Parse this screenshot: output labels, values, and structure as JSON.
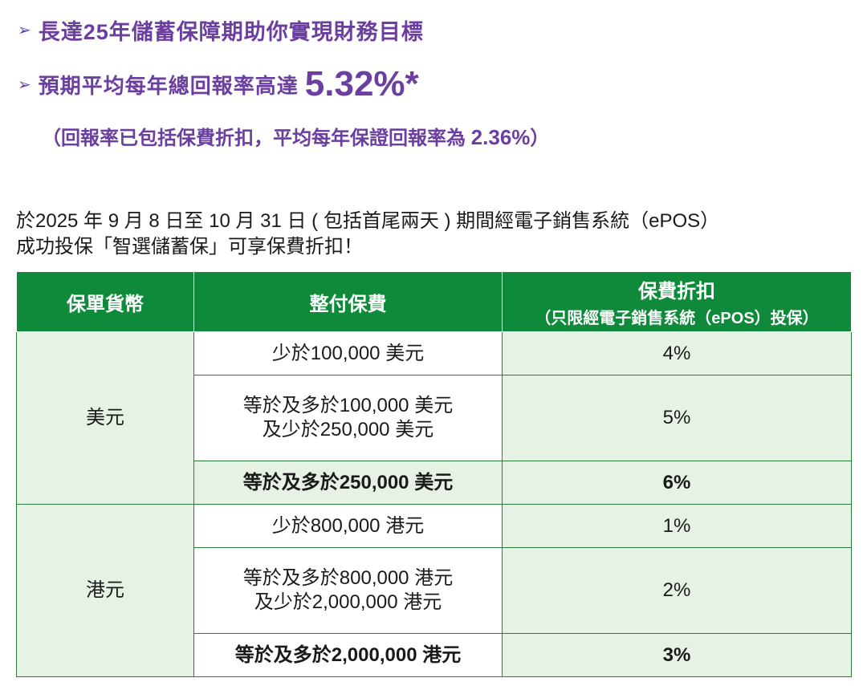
{
  "bullets": {
    "arrow": "➢",
    "line1": "長達25年儲蓄保障期助你實現財務目標",
    "line2_text": "預期平均每年總回報率高達",
    "line2_rate": "5.32%*"
  },
  "note": {
    "prefix": "（回報率已包括保費折扣，平均每年保證回報率為 ",
    "rate": "2.36%",
    "suffix": "）"
  },
  "intro": {
    "line1": "於2025 年 9 月 8 日至 10 月 31 日 ( 包括首尾兩天 ) 期間經電子銷售系統（ePOS）",
    "line2": "成功投保「智選儲蓄保」可享保費折扣！"
  },
  "table": {
    "headers": {
      "currency": "保單貨幣",
      "premium": "整付保費",
      "discount": "保費折扣",
      "discount_note": "（只限經電子銷售系統（ePOS）投保）"
    },
    "groups": [
      {
        "currency": "美元",
        "rows": [
          {
            "premium_line1": "少於100,000 美元",
            "premium_line2": "",
            "discount": "4%",
            "bold": false
          },
          {
            "premium_line1": "等於及多於100,000 美元",
            "premium_line2": "及少於250,000 美元",
            "discount": "5%",
            "bold": false
          },
          {
            "premium_line1": "等於及多於250,000 美元",
            "premium_line2": "",
            "discount": "6%",
            "bold": true
          }
        ]
      },
      {
        "currency": "港元",
        "rows": [
          {
            "premium_line1": "少於800,000 港元",
            "premium_line2": "",
            "discount": "1%",
            "bold": false
          },
          {
            "premium_line1": "等於及多於800,000 港元",
            "premium_line2": "及少於2,000,000 港元",
            "discount": "2%",
            "bold": false
          },
          {
            "premium_line1": "等於及多於2,000,000 港元",
            "premium_line2": "",
            "discount": "3%",
            "bold": true
          }
        ]
      }
    ]
  }
}
